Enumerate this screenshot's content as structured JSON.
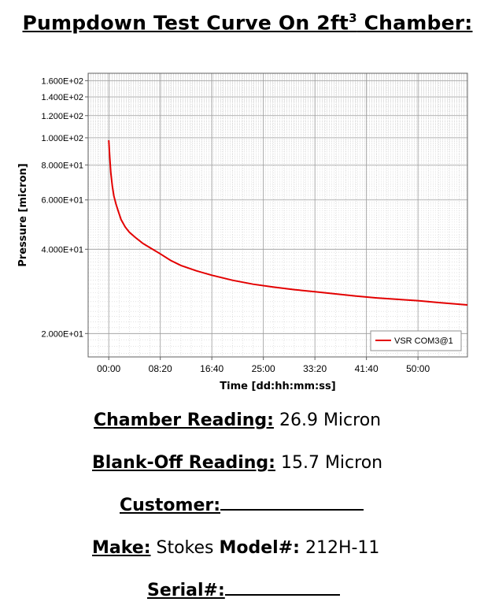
{
  "title": {
    "text": "Pumpdown Test Curve On 2ft",
    "superscript": "3",
    "suffix": " Chamber:"
  },
  "chart_data": {
    "type": "line",
    "xlabel": "Time [dd:hh:mm:ss]",
    "ylabel": "Pressure [micron]",
    "x_unit": "seconds",
    "y_scale": "log",
    "xlim": [
      -200,
      3480
    ],
    "ylim": [
      16.5,
      170
    ],
    "grid": true,
    "legend_position": "bottom-right",
    "line_color": "#e30000",
    "x_ticks": [
      {
        "value": 0,
        "label": "00:00"
      },
      {
        "value": 500,
        "label": "08:20"
      },
      {
        "value": 1000,
        "label": "16:40"
      },
      {
        "value": 1500,
        "label": "25:00"
      },
      {
        "value": 2000,
        "label": "33:20"
      },
      {
        "value": 2500,
        "label": "41:40"
      },
      {
        "value": 3000,
        "label": "50:00"
      }
    ],
    "y_ticks": [
      {
        "value": 20,
        "label": "2.000E+01"
      },
      {
        "value": 40,
        "label": "4.000E+01"
      },
      {
        "value": 60,
        "label": "6.000E+01"
      },
      {
        "value": 80,
        "label": "8.000E+01"
      },
      {
        "value": 100,
        "label": "1.000E+02"
      },
      {
        "value": 120,
        "label": "1.200E+02"
      },
      {
        "value": 140,
        "label": "1.400E+02"
      },
      {
        "value": 160,
        "label": "1.600E+02"
      }
    ],
    "series": [
      {
        "name": "VSR COM3@1",
        "x": [
          0,
          10,
          20,
          35,
          50,
          70,
          90,
          120,
          160,
          200,
          260,
          330,
          400,
          500,
          600,
          700,
          850,
          1000,
          1200,
          1400,
          1600,
          1800,
          2000,
          2200,
          2400,
          2600,
          2800,
          3000,
          3200,
          3480
        ],
        "y": [
          98,
          85,
          75,
          67,
          62,
          58,
          55,
          51,
          48,
          46,
          44,
          42,
          40.5,
          38.5,
          36.5,
          35,
          33.5,
          32.3,
          31,
          30,
          29.3,
          28.7,
          28.2,
          27.7,
          27.2,
          26.8,
          26.5,
          26.2,
          25.8,
          25.3
        ]
      }
    ]
  },
  "fields": {
    "chamber": {
      "label": "Chamber Reading:",
      "value": " 26.9 Micron"
    },
    "blankoff": {
      "label": "Blank-Off Reading:",
      "value": " 15.7 Micron"
    },
    "customer": {
      "label": "Customer:"
    },
    "make": {
      "label": "Make:",
      "value": " Stokes "
    },
    "model": {
      "label": "Model#:",
      "value": " 212H-11"
    },
    "serial": {
      "label": "Serial#:"
    }
  }
}
